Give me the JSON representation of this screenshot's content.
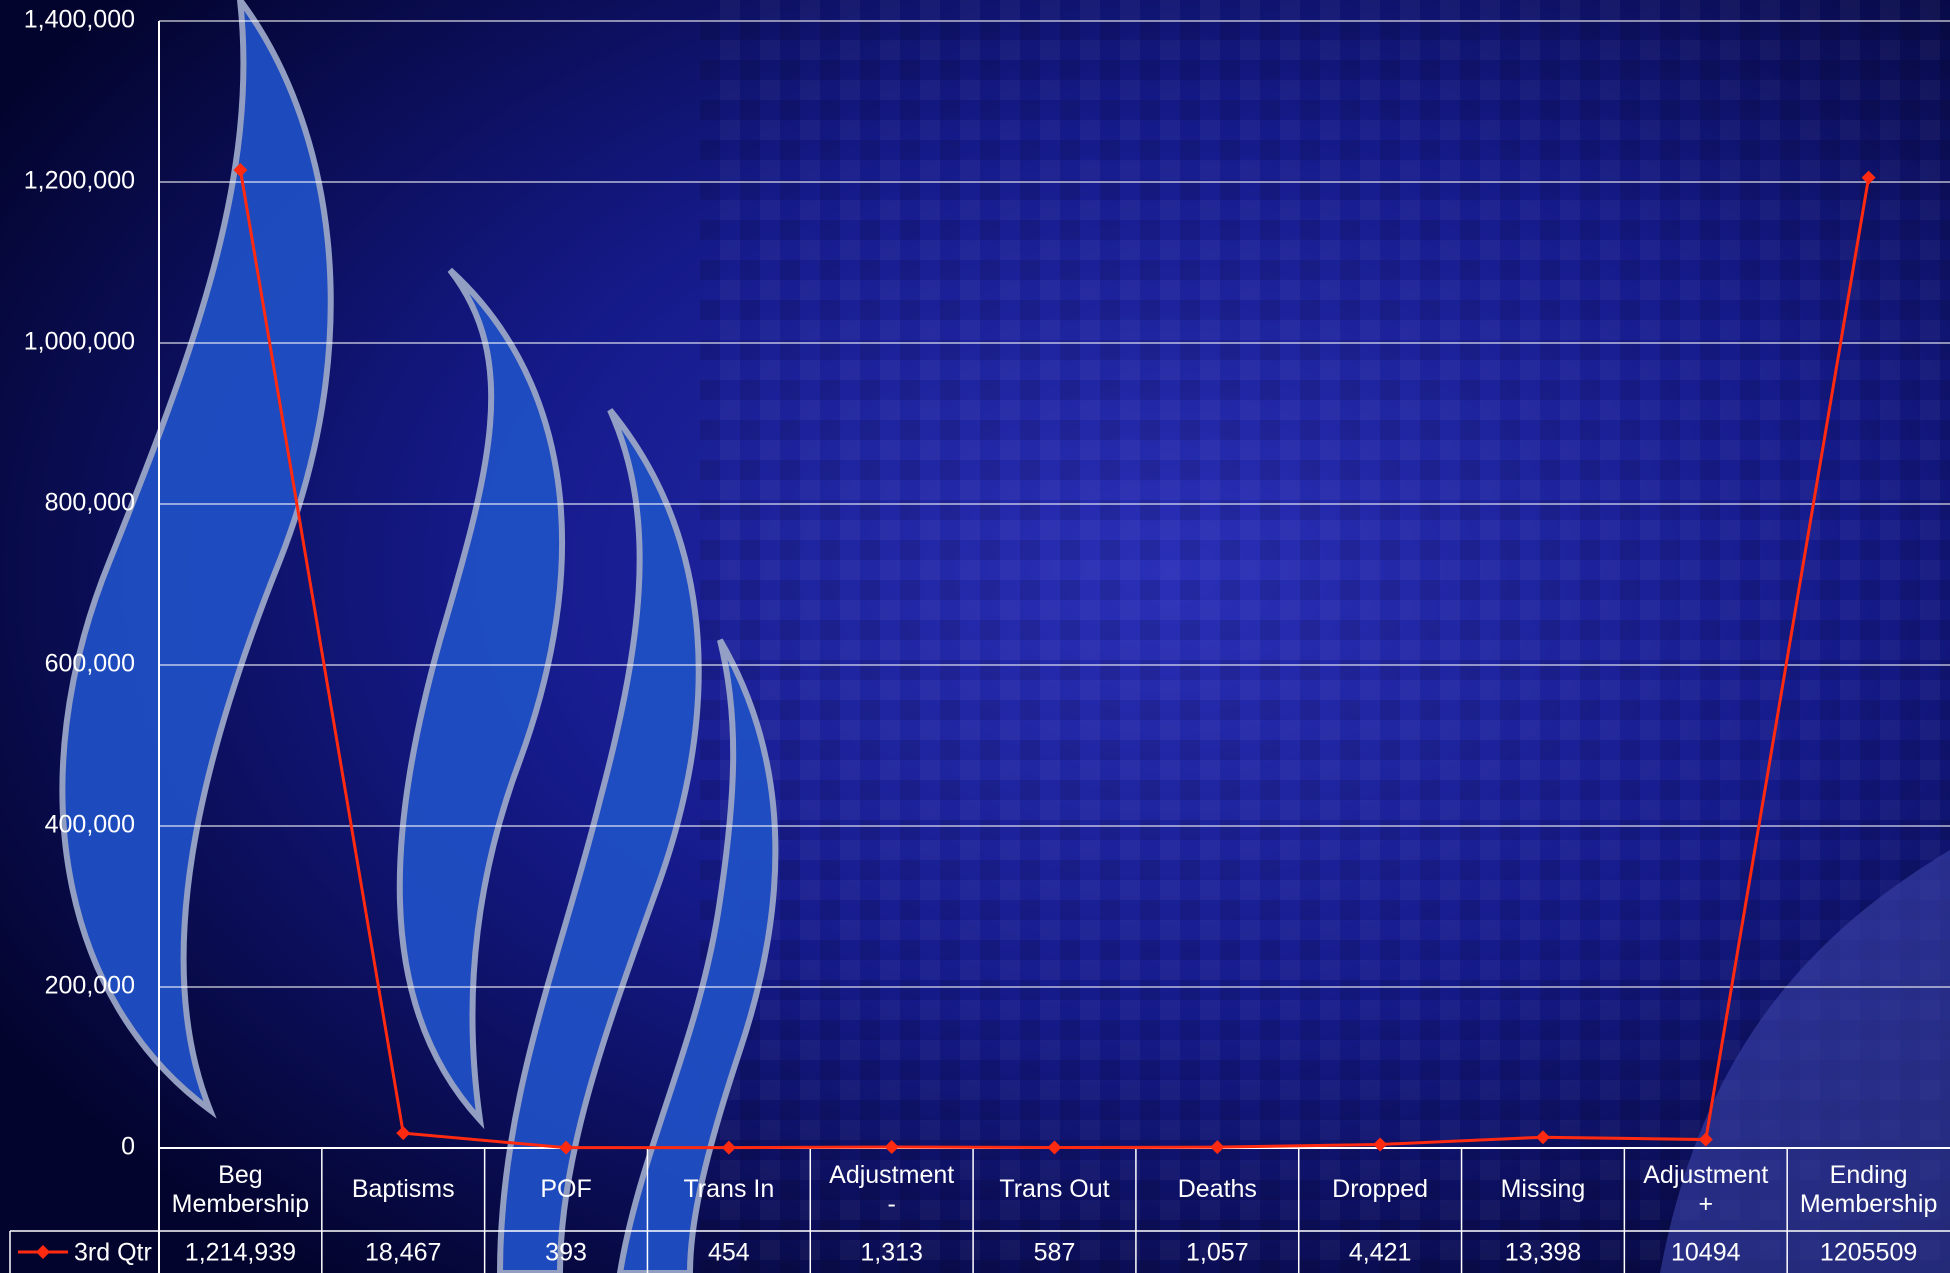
{
  "chart_data": {
    "type": "line",
    "categories": [
      "Beg Membership",
      "Baptisms",
      "POF",
      "Trans In",
      "Adjustment -",
      "Trans Out",
      "Deaths",
      "Dropped",
      "Missing",
      "Adjustment +",
      "Ending Membership"
    ],
    "series": [
      {
        "name": "3rd Qtr",
        "color": "#ff2a10",
        "values": [
          1214939,
          18467,
          393,
          454,
          1313,
          587,
          1057,
          4421,
          13398,
          10494,
          1205509
        ],
        "value_labels": [
          "1,214,939",
          "18,467",
          "393",
          "454",
          "1,313",
          "587",
          "1,057",
          "4,421",
          "13,398",
          "10494",
          "1205509"
        ]
      }
    ],
    "ylim": [
      0,
      1400000
    ],
    "yticks": [
      0,
      {
        "value": 200000,
        "label": "200,000"
      },
      {
        "value": 400000,
        "label": "400,000"
      },
      {
        "value": 600000,
        "label": "600,000"
      },
      {
        "value": 800000,
        "label": "800,000"
      },
      {
        "value": 1000000,
        "label": "1,000,000"
      },
      {
        "value": 1200000,
        "label": "1,200,000"
      },
      {
        "value": 1400000,
        "label": "1,400,000"
      }
    ],
    "grid": true
  }
}
